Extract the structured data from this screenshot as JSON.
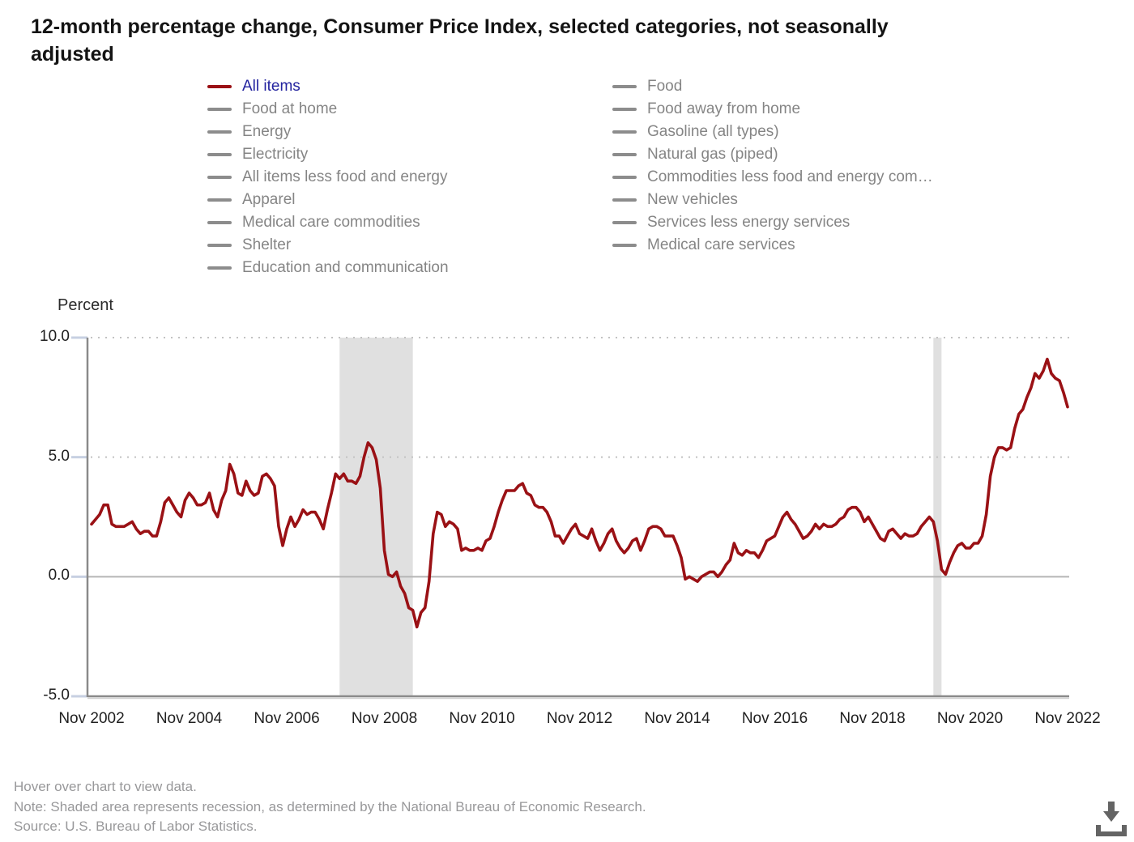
{
  "title_line1": "12-month percentage change, Consumer Price Index, selected categories, not seasonally",
  "title_line2": "adjusted",
  "legend": {
    "left": [
      {
        "label": "All items",
        "active": true
      },
      {
        "label": "Food at home"
      },
      {
        "label": "Energy"
      },
      {
        "label": "Electricity"
      },
      {
        "label": "All items less food and energy"
      },
      {
        "label": "Apparel"
      },
      {
        "label": "Medical care commodities"
      },
      {
        "label": "Shelter"
      },
      {
        "label": "Education and communication"
      }
    ],
    "right": [
      {
        "label": "Food"
      },
      {
        "label": "Food away from home"
      },
      {
        "label": "Gasoline (all types)"
      },
      {
        "label": "Natural gas (piped)"
      },
      {
        "label": "Commodities less food and energy com…"
      },
      {
        "label": "New vehicles"
      },
      {
        "label": "Services less energy services"
      },
      {
        "label": "Medical care services"
      }
    ]
  },
  "axis": {
    "percent_label": "Percent",
    "y_ticks": [
      {
        "label": "10.0",
        "value": 10,
        "grid": "dotted"
      },
      {
        "label": "5.0",
        "value": 5,
        "grid": "dotted"
      },
      {
        "label": "0.0",
        "value": 0,
        "grid": "solid"
      },
      {
        "label": "-5.0",
        "value": -5,
        "grid": "axis"
      }
    ],
    "x_ticks": [
      {
        "label": "Nov 2002",
        "month_index": 0
      },
      {
        "label": "Nov 2004",
        "month_index": 24
      },
      {
        "label": "Nov 2006",
        "month_index": 48
      },
      {
        "label": "Nov 2008",
        "month_index": 72
      },
      {
        "label": "Nov 2010",
        "month_index": 96
      },
      {
        "label": "Nov 2012",
        "month_index": 120
      },
      {
        "label": "Nov 2014",
        "month_index": 144
      },
      {
        "label": "Nov 2016",
        "month_index": 168
      },
      {
        "label": "Nov 2018",
        "month_index": 192
      },
      {
        "label": "Nov 2020",
        "month_index": 216
      },
      {
        "label": "Nov 2022",
        "month_index": 240
      }
    ]
  },
  "footer": {
    "hover": "Hover over chart to view data.",
    "note": "Note: Shaded area represents recession, as determined by the National Bureau of Economic Research.",
    "source": "Source: U.S. Bureau of Labor Statistics."
  },
  "colors": {
    "series": "#9a1115",
    "legend_swatch": "#8c8c8c",
    "legend_text": "#858585",
    "active_text": "#23239f",
    "recession_band": "#e0e0e0",
    "grid_dotted": "#c2c2c2",
    "zero_line": "#b5b5b5",
    "axis_line": "#8a8a8a",
    "tick_mark": "#c7d0e2",
    "icon": "#646464"
  },
  "chart_data": {
    "type": "line",
    "title": "12-month percentage change, Consumer Price Index, selected categories, not seasonally adjusted",
    "ylabel": "Percent",
    "ylim": [
      -5,
      10
    ],
    "y_gridlines": [
      10,
      5
    ],
    "x_start": "Nov 2002",
    "x_end": "Nov 2022",
    "x_interval": "monthly",
    "legend_position": "top",
    "recessions": [
      {
        "start": "Dec 2007",
        "end": "Jun 2009",
        "start_index": 61,
        "end_index": 79
      },
      {
        "start": "Feb 2020",
        "end": "Apr 2020",
        "start_index": 207,
        "end_index": 209
      }
    ],
    "series": [
      {
        "name": "All items",
        "color": "#9a1115",
        "values": [
          2.2,
          2.4,
          2.6,
          3.0,
          3.0,
          2.2,
          2.1,
          2.1,
          2.1,
          2.2,
          2.3,
          2.0,
          1.8,
          1.9,
          1.9,
          1.7,
          1.7,
          2.3,
          3.1,
          3.3,
          3.0,
          2.7,
          2.5,
          3.2,
          3.5,
          3.3,
          3.0,
          3.0,
          3.1,
          3.5,
          2.8,
          2.5,
          3.2,
          3.6,
          4.7,
          4.3,
          3.5,
          3.4,
          4.0,
          3.6,
          3.4,
          3.5,
          4.2,
          4.3,
          4.1,
          3.8,
          2.1,
          1.3,
          2.0,
          2.5,
          2.1,
          2.4,
          2.8,
          2.6,
          2.7,
          2.7,
          2.4,
          2.0,
          2.8,
          3.5,
          4.3,
          4.1,
          4.3,
          4.0,
          4.0,
          3.9,
          4.2,
          5.0,
          5.6,
          5.4,
          4.9,
          3.7,
          1.1,
          0.1,
          0.0,
          0.2,
          -0.4,
          -0.7,
          -1.3,
          -1.4,
          -2.1,
          -1.5,
          -1.3,
          -0.2,
          1.8,
          2.7,
          2.6,
          2.1,
          2.3,
          2.2,
          2.0,
          1.1,
          1.2,
          1.1,
          1.1,
          1.2,
          1.1,
          1.5,
          1.6,
          2.1,
          2.7,
          3.2,
          3.6,
          3.6,
          3.6,
          3.8,
          3.9,
          3.5,
          3.4,
          3.0,
          2.9,
          2.9,
          2.7,
          2.3,
          1.7,
          1.7,
          1.4,
          1.7,
          2.0,
          2.2,
          1.8,
          1.7,
          1.6,
          2.0,
          1.5,
          1.1,
          1.4,
          1.8,
          2.0,
          1.5,
          1.2,
          1.0,
          1.2,
          1.5,
          1.6,
          1.1,
          1.5,
          2.0,
          2.1,
          2.1,
          2.0,
          1.7,
          1.7,
          1.7,
          1.3,
          0.8,
          -0.1,
          0.0,
          -0.1,
          -0.2,
          0.0,
          0.1,
          0.2,
          0.2,
          0.0,
          0.2,
          0.5,
          0.7,
          1.4,
          1.0,
          0.9,
          1.1,
          1.0,
          1.0,
          0.8,
          1.1,
          1.5,
          1.6,
          1.7,
          2.1,
          2.5,
          2.7,
          2.4,
          2.2,
          1.9,
          1.6,
          1.7,
          1.9,
          2.2,
          2.0,
          2.2,
          2.1,
          2.1,
          2.2,
          2.4,
          2.5,
          2.8,
          2.9,
          2.9,
          2.7,
          2.3,
          2.5,
          2.2,
          1.9,
          1.6,
          1.5,
          1.9,
          2.0,
          1.8,
          1.6,
          1.8,
          1.7,
          1.7,
          1.8,
          2.1,
          2.3,
          2.5,
          2.3,
          1.5,
          0.3,
          0.1,
          0.6,
          1.0,
          1.3,
          1.4,
          1.2,
          1.2,
          1.4,
          1.4,
          1.7,
          2.6,
          4.2,
          5.0,
          5.4,
          5.4,
          5.3,
          5.4,
          6.2,
          6.8,
          7.0,
          7.5,
          7.9,
          8.5,
          8.3,
          8.6,
          9.1,
          8.5,
          8.3,
          8.2,
          7.7,
          7.1
        ]
      }
    ]
  }
}
